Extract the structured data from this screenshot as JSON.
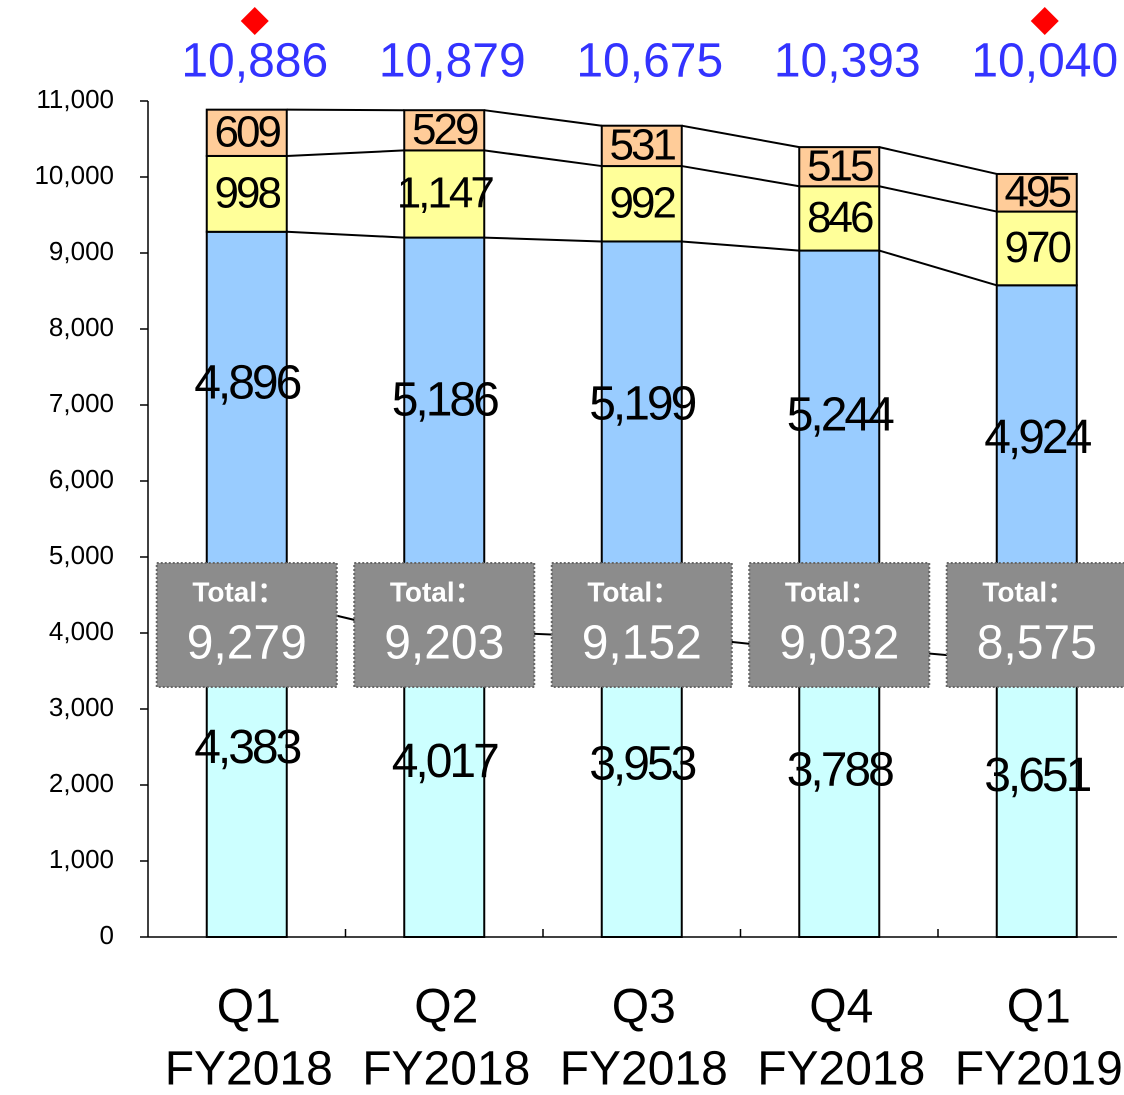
{
  "chart_data": {
    "type": "stacked_bar",
    "categories": [
      [
        "Q1",
        "FY2018"
      ],
      [
        "Q2",
        "FY2018"
      ],
      [
        "Q3",
        "FY2018"
      ],
      [
        "Q4",
        "FY2018"
      ],
      [
        "Q1",
        "FY2019"
      ]
    ],
    "series": [
      {
        "color": "#ccffff",
        "values": [
          4383,
          4017,
          3953,
          3788,
          3651
        ],
        "value_labels": [
          "4,383",
          "4,017",
          "3,953",
          "3,788",
          "3,651"
        ]
      },
      {
        "color": "#99ccff",
        "values": [
          4896,
          5186,
          5199,
          5244,
          4924
        ],
        "value_labels": [
          "4,896",
          "5,186",
          "5,199",
          "5,244",
          "4,924"
        ]
      },
      {
        "color": "#ffff99",
        "values": [
          998,
          1147,
          992,
          846,
          970
        ],
        "value_labels": [
          "998",
          "1,147",
          "992",
          "846",
          "970"
        ]
      },
      {
        "color": "#ffcc99",
        "values": [
          609,
          529,
          531,
          515,
          495
        ]
      }
    ],
    "subtotals": {
      "label": "Total：",
      "values": [
        9279,
        9203,
        9152,
        9032,
        8575
      ],
      "value_labels": [
        "9,279",
        "9,203",
        "9,152",
        "9,032",
        "8,575"
      ]
    },
    "totals": {
      "color": "#3333ff",
      "values": [
        10886,
        10879,
        10675,
        10393,
        10040
      ],
      "value_labels": [
        "10,886",
        "10,879",
        "10,675",
        "10,393",
        "10,040"
      ]
    },
    "highlight": [
      true,
      false,
      false,
      false,
      true
    ],
    "highlight_color": "#ff0000",
    "ylim": [
      0,
      11000
    ],
    "yticks": [
      0,
      {
        "value": 1000,
        "label": "1,000"
      },
      {
        "value": 2000,
        "label": "2,000"
      },
      {
        "value": 3000,
        "label": "3,000"
      },
      {
        "value": 4000,
        "label": "4,000"
      },
      {
        "value": 5000,
        "label": "5,000"
      },
      {
        "value": 6000,
        "label": "6,000"
      },
      {
        "value": 7000,
        "label": "7,000"
      },
      {
        "value": 8000,
        "label": "8,000"
      },
      {
        "value": 9000,
        "label": "9,000"
      },
      {
        "value": 10000,
        "label": "10,000"
      },
      {
        "value": 11000,
        "label": "11,000"
      }
    ]
  }
}
